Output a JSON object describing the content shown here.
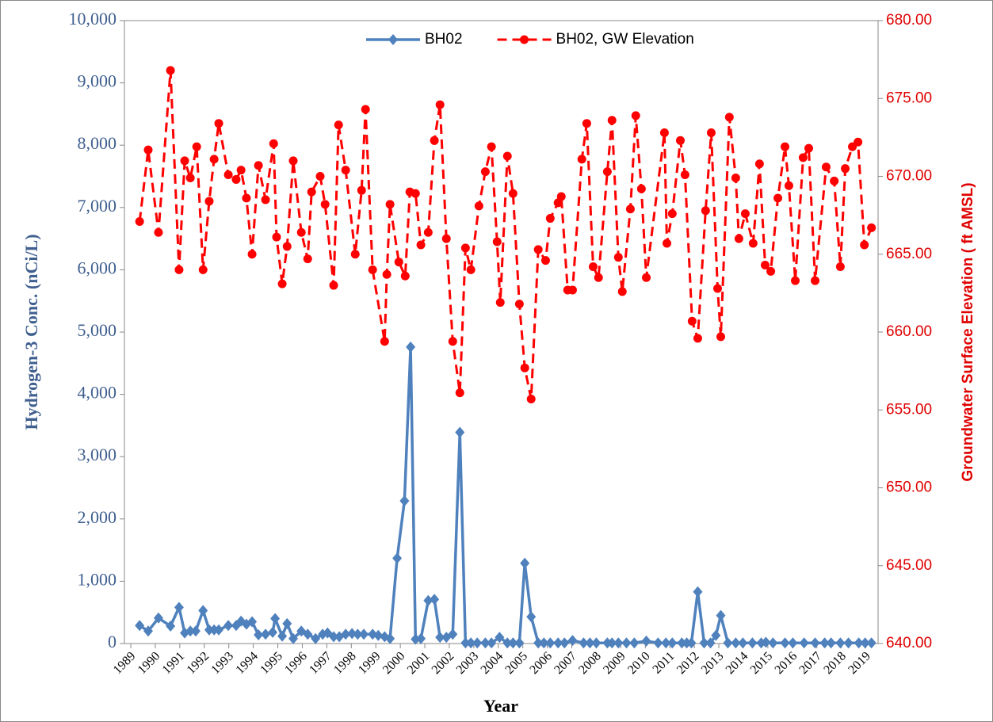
{
  "chart_data": {
    "type": "line",
    "ylabel": "Hydrogen-3 Conc. (nCi/L)",
    "y2label": "Groundwater Surface Elevation ( ft AMSL)",
    "xlabel": "Year",
    "legend": "top",
    "xlim": [
      1988.74,
      2019.5
    ],
    "xticks": [
      1989,
      1990,
      1991,
      1992,
      1993,
      1994,
      1995,
      1996,
      1997,
      1998,
      1999,
      2000,
      2001,
      2002,
      2003,
      2004,
      2005,
      2006,
      2007,
      2008,
      2009,
      2010,
      2011,
      2012,
      2013,
      2014,
      2015,
      2016,
      2017,
      2018,
      2019
    ],
    "ylim": [
      0,
      10000
    ],
    "yticks": [
      0,
      {
        "value": 1000,
        "label": "1,000"
      },
      {
        "value": 2000,
        "label": "2,000"
      },
      {
        "value": 3000,
        "label": "3,000"
      },
      {
        "value": 4000,
        "label": "4,000"
      },
      {
        "value": 5000,
        "label": "5,000"
      },
      {
        "value": 6000,
        "label": "6,000"
      },
      {
        "value": 7000,
        "label": "7,000"
      },
      {
        "value": 8000,
        "label": "8,000"
      },
      {
        "value": 9000,
        "label": "9,000"
      },
      {
        "value": 10000,
        "label": "10,000"
      }
    ],
    "y2lim": [
      640,
      680
    ],
    "y2ticks": [
      {
        "value": 640,
        "label": "640.00"
      },
      {
        "value": 645,
        "label": "645.00"
      },
      {
        "value": 650,
        "label": "650.00"
      },
      {
        "value": 655,
        "label": "655.00"
      },
      {
        "value": 660,
        "label": "660.00"
      },
      {
        "value": 665,
        "label": "665.00"
      },
      {
        "value": 670,
        "label": "670.00"
      },
      {
        "value": 675,
        "label": "675.00"
      },
      {
        "value": 680,
        "label": "680.00"
      }
    ],
    "series": [
      {
        "name": "BH02",
        "color": "#4f81bd",
        "marker": "diamond",
        "dashed": false,
        "x": [
          1989.36,
          1989.71,
          1990.13,
          1990.62,
          1990.97,
          1991.2,
          1991.43,
          1991.65,
          1991.95,
          1992.2,
          1992.4,
          1992.59,
          1992.98,
          1993.3,
          1993.5,
          1993.72,
          1993.95,
          1994.21,
          1994.5,
          1994.79,
          1994.89,
          1995.18,
          1995.38,
          1995.63,
          1995.96,
          1996.22,
          1996.54,
          1996.83,
          1997.03,
          1997.28,
          1997.51,
          1997.77,
          1998.03,
          1998.26,
          1998.51,
          1998.87,
          1999.1,
          1999.36,
          1999.58,
          1999.87,
          2000.17,
          2000.42,
          2000.62,
          2000.84,
          2001.14,
          2001.39,
          2001.62,
          2001.88,
          2002.14,
          2002.43,
          2002.66,
          2002.88,
          2003.14,
          2003.47,
          2003.72,
          2004.05,
          2004.37,
          2004.6,
          2004.86,
          2005.08,
          2005.34,
          2005.63,
          2005.86,
          2006.12,
          2006.44,
          2006.7,
          2007.03,
          2007.48,
          2007.74,
          2008.0,
          2008.45,
          2008.64,
          2008.9,
          2009.23,
          2009.55,
          2010.04,
          2010.52,
          2010.84,
          2011.1,
          2011.49,
          2011.69,
          2011.88,
          2012.14,
          2012.4,
          2012.66,
          2012.88,
          2013.08,
          2013.37,
          2013.69,
          2013.98,
          2014.37,
          2014.73,
          2014.92,
          2015.21,
          2015.7,
          2016.02,
          2016.48,
          2016.93,
          2017.32,
          2017.58,
          2017.96,
          2018.29,
          2018.71,
          2018.97,
          2019.23
        ],
        "values": [
          290,
          200,
          410,
          280,
          580,
          170,
          200,
          200,
          530,
          220,
          220,
          220,
          290,
          290,
          360,
          310,
          350,
          140,
          150,
          180,
          400,
          120,
          320,
          80,
          200,
          150,
          80,
          150,
          170,
          110,
          110,
          150,
          160,
          150,
          150,
          150,
          130,
          110,
          80,
          1370,
          2290,
          4760,
          70,
          80,
          690,
          710,
          100,
          100,
          150,
          3390,
          10,
          10,
          10,
          10,
          10,
          100,
          10,
          10,
          10,
          1290,
          430,
          10,
          10,
          10,
          10,
          10,
          50,
          10,
          10,
          10,
          10,
          10,
          10,
          10,
          10,
          40,
          10,
          10,
          10,
          10,
          10,
          10,
          830,
          10,
          10,
          130,
          450,
          10,
          10,
          10,
          10,
          10,
          20,
          10,
          10,
          10,
          10,
          10,
          10,
          10,
          10,
          10,
          10,
          10,
          10
        ]
      },
      {
        "name": "BH02, GW Elevation",
        "color": "#ff0000",
        "marker": "circle",
        "dashed": true,
        "axis": "y2",
        "x": [
          1989.36,
          1989.71,
          1990.13,
          1990.62,
          1990.97,
          1991.2,
          1991.43,
          1991.69,
          1991.95,
          1992.2,
          1992.4,
          1992.59,
          1992.98,
          1993.3,
          1993.5,
          1993.72,
          1993.95,
          1994.21,
          1994.5,
          1994.83,
          1994.95,
          1995.18,
          1995.38,
          1995.63,
          1995.96,
          1996.22,
          1996.38,
          1996.73,
          1996.93,
          1997.28,
          1997.48,
          1997.77,
          1998.16,
          1998.42,
          1998.58,
          1998.87,
          1999.36,
          1999.45,
          1999.58,
          1999.94,
          2000.2,
          2000.39,
          2000.62,
          2000.84,
          2001.14,
          2001.39,
          2001.62,
          2001.88,
          2002.14,
          2002.43,
          2002.66,
          2002.88,
          2003.21,
          2003.47,
          2003.72,
          2003.95,
          2004.08,
          2004.37,
          2004.6,
          2004.86,
          2005.08,
          2005.34,
          2005.63,
          2005.93,
          2006.12,
          2006.44,
          2006.57,
          2006.83,
          2007.03,
          2007.41,
          2007.61,
          2007.87,
          2008.09,
          2008.45,
          2008.64,
          2008.9,
          2009.06,
          2009.39,
          2009.61,
          2009.84,
          2010.04,
          2010.78,
          2010.88,
          2011.1,
          2011.43,
          2011.62,
          2011.91,
          2012.14,
          2012.46,
          2012.69,
          2012.95,
          2013.08,
          2013.43,
          2013.69,
          2013.82,
          2014.08,
          2014.4,
          2014.66,
          2014.89,
          2015.12,
          2015.41,
          2015.7,
          2015.86,
          2016.12,
          2016.44,
          2016.67,
          2016.93,
          2017.38,
          2017.71,
          2017.96,
          2018.16,
          2018.45,
          2018.68,
          2018.94,
          2019.23
        ],
        "values": [
          667.1,
          671.7,
          666.4,
          676.8,
          664.0,
          671.0,
          669.9,
          671.9,
          664.0,
          668.4,
          671.1,
          673.4,
          670.1,
          669.8,
          670.4,
          668.6,
          665.0,
          670.7,
          668.5,
          672.1,
          666.1,
          663.1,
          665.5,
          671.0,
          666.4,
          664.7,
          669.0,
          670.0,
          668.2,
          663.0,
          673.3,
          670.4,
          665.0,
          669.1,
          674.3,
          664.0,
          659.4,
          663.7,
          668.2,
          664.5,
          663.6,
          669.0,
          668.9,
          665.6,
          666.4,
          672.3,
          674.6,
          666.0,
          659.4,
          656.1,
          665.4,
          664.0,
          668.1,
          670.3,
          671.9,
          665.8,
          661.9,
          671.3,
          668.9,
          661.8,
          657.7,
          655.7,
          665.3,
          664.6,
          667.3,
          668.3,
          668.7,
          662.7,
          662.7,
          671.1,
          673.4,
          664.2,
          663.5,
          670.3,
          673.6,
          664.8,
          662.6,
          667.9,
          673.9,
          669.2,
          663.5,
          672.8,
          665.7,
          667.6,
          672.3,
          670.1,
          660.7,
          659.6,
          667.8,
          672.8,
          662.8,
          659.7,
          673.8,
          669.9,
          666.0,
          667.6,
          665.7,
          670.8,
          664.3,
          663.9,
          668.6,
          671.9,
          669.4,
          663.3,
          671.2,
          671.8,
          663.3,
          670.6,
          669.7,
          664.2,
          670.5,
          671.9,
          672.2,
          665.6,
          666.7
        ]
      }
    ]
  }
}
